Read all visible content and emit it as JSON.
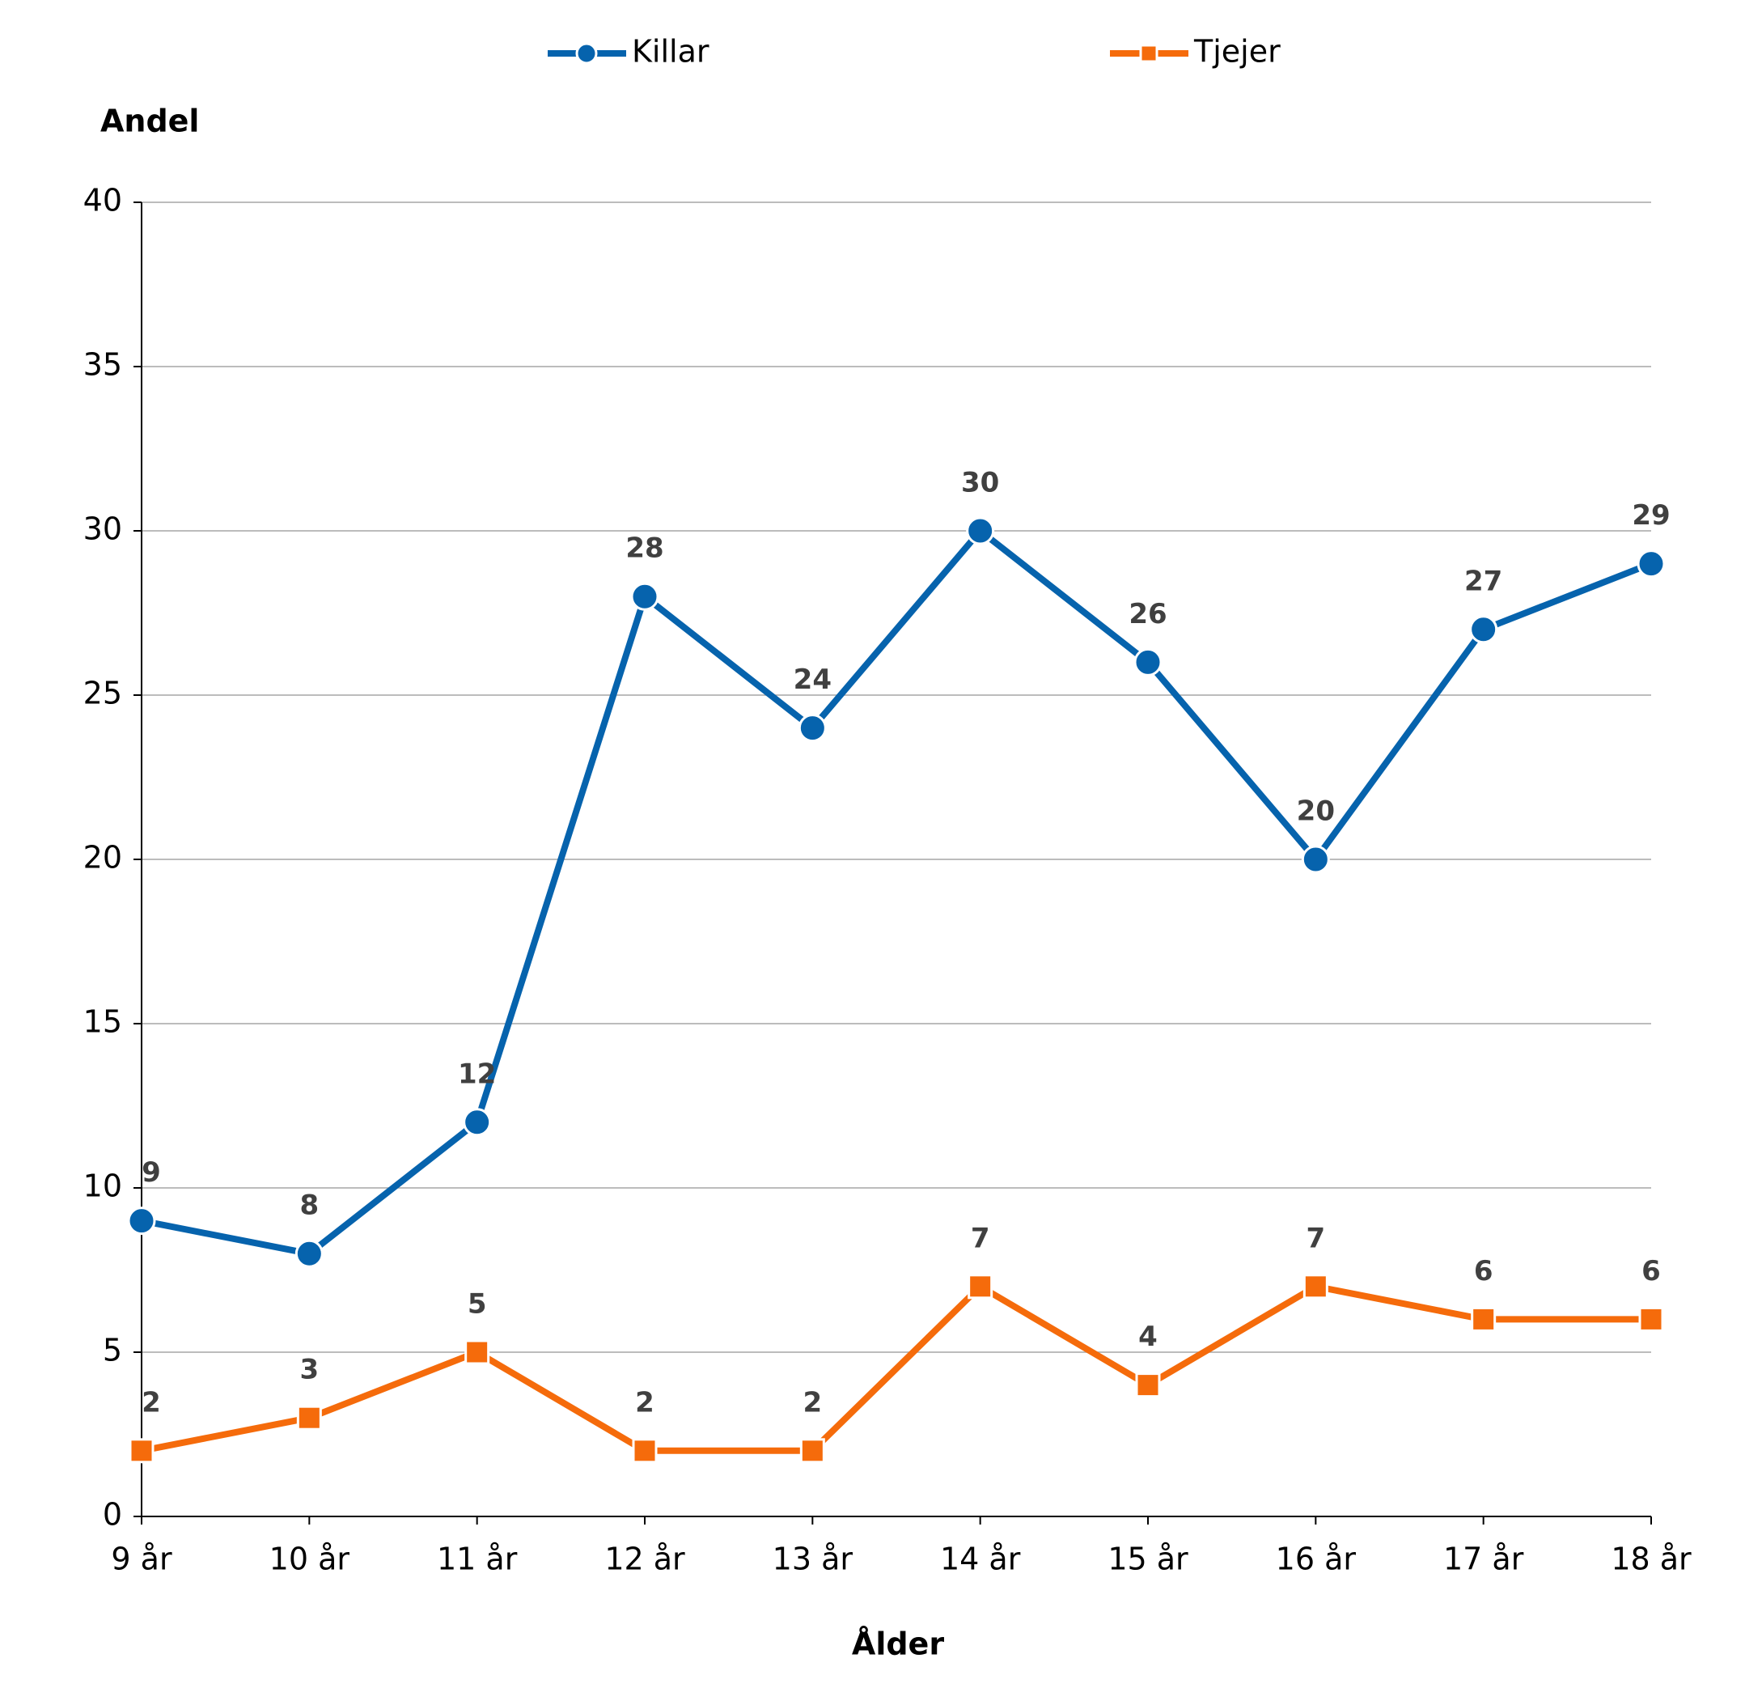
{
  "chart_data": {
    "type": "line",
    "x_label": "Ålder",
    "y_label": "Andel",
    "categories": [
      "9 år",
      "10 år",
      "11 år",
      "12 år",
      "13 år",
      "14 år",
      "15 år",
      "16 år",
      "17 år",
      "18 år"
    ],
    "series": [
      {
        "name": "Killar",
        "color": "#0663ad",
        "marker": "circle",
        "values": [
          9,
          8,
          12,
          28,
          24,
          30,
          26,
          20,
          27,
          29
        ]
      },
      {
        "name": "Tjejer",
        "color": "#f56b0b",
        "marker": "square",
        "values": [
          2,
          3,
          5,
          2,
          2,
          7,
          4,
          7,
          6,
          6
        ]
      }
    ],
    "ylim": [
      0,
      40
    ],
    "yticks": [
      0,
      5,
      10,
      15,
      20,
      25,
      30,
      35,
      40
    ],
    "grid": true,
    "legend": "top"
  }
}
